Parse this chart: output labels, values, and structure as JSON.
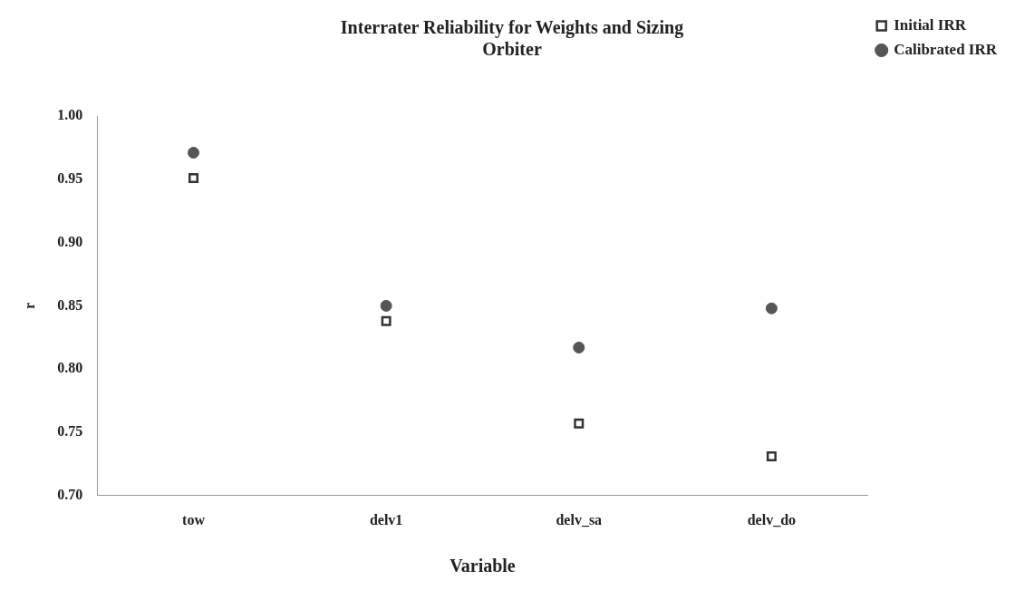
{
  "chart_data": {
    "type": "scatter",
    "title": "Interrater Reliability for Weights and Sizing\nOrbiter",
    "xlabel": "Variable",
    "ylabel": "r",
    "categories": [
      "tow",
      "delv1",
      "delv_sa",
      "delv_do"
    ],
    "series": [
      {
        "name": "Initial IRR",
        "color": "#333333",
        "marker": "square",
        "values": [
          0.951,
          0.838,
          0.757,
          0.731
        ]
      },
      {
        "name": "Calibrated IRR",
        "color": "#555555",
        "marker": "circle",
        "values": [
          0.971,
          0.85,
          0.817,
          0.848
        ]
      }
    ],
    "ylim": [
      0.7,
      1.0
    ],
    "yticks": [
      {
        "value": 0.7,
        "label": "0.70"
      },
      {
        "value": 0.75,
        "label": "0.75"
      },
      {
        "value": 0.8,
        "label": "0.80"
      },
      {
        "value": 0.85,
        "label": "0.85"
      },
      {
        "value": 0.9,
        "label": "0.90"
      },
      {
        "value": 0.95,
        "label": "0.95"
      },
      {
        "value": 1.0,
        "label": "1.00"
      }
    ],
    "grid": false,
    "legend": "top right"
  }
}
